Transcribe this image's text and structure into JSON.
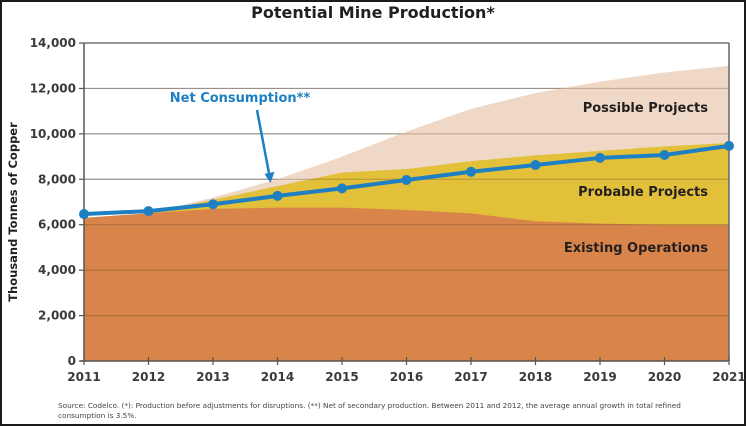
{
  "chart_data": {
    "type": "area",
    "title": "Potential Mine Production*",
    "xlabel": "",
    "ylabel": "Thousand Tonnes of Copper",
    "x": [
      2011,
      2012,
      2013,
      2014,
      2015,
      2016,
      2017,
      2018,
      2019,
      2020,
      2021
    ],
    "x_tick_labels": [
      "2011",
      "2012",
      "2013",
      "2014",
      "2015",
      "2016",
      "2017",
      "2018",
      "2019",
      "2020",
      "2021"
    ],
    "ylim": [
      0,
      14000
    ],
    "y_ticks": [
      0,
      2000,
      4000,
      6000,
      8000,
      10000,
      12000,
      14000
    ],
    "y_tick_labels": [
      "0",
      "2,000",
      "4,000",
      "6,000",
      "8,000",
      "10,000",
      "12,000",
      "14,000"
    ],
    "grid": true,
    "stacked_areas": [
      {
        "name": "Existing Operations",
        "color": "#d9844a",
        "top": [
          6300,
          6500,
          6700,
          6750,
          6750,
          6650,
          6500,
          6150,
          6050,
          6000,
          6000
        ]
      },
      {
        "name": "Probable Projects",
        "color": "#e2c03a",
        "top": [
          6300,
          6500,
          7100,
          7700,
          8300,
          8450,
          8800,
          9050,
          9250,
          9450,
          9600
        ]
      },
      {
        "name": "Possible Projects",
        "color": "#efd9c6",
        "top": [
          6300,
          6500,
          7200,
          8000,
          9000,
          10100,
          11100,
          11800,
          12300,
          12700,
          13000
        ]
      }
    ],
    "series": [
      {
        "name": "Net Consumption**",
        "type": "line",
        "color": "#1e7fc2",
        "values": [
          6470,
          6600,
          6900,
          7270,
          7600,
          7970,
          8330,
          8630,
          8940,
          9070,
          9470
        ]
      }
    ],
    "annotations": [
      {
        "text": "Net Consumption**",
        "points_to": 2014
      }
    ]
  },
  "source_note": "Source: Codelco. (*): Production before adjustments for disruptions. (**) Net of secondary production. Between 2011 and 2012, the average annual growth in total refined consumption is 3.5%."
}
